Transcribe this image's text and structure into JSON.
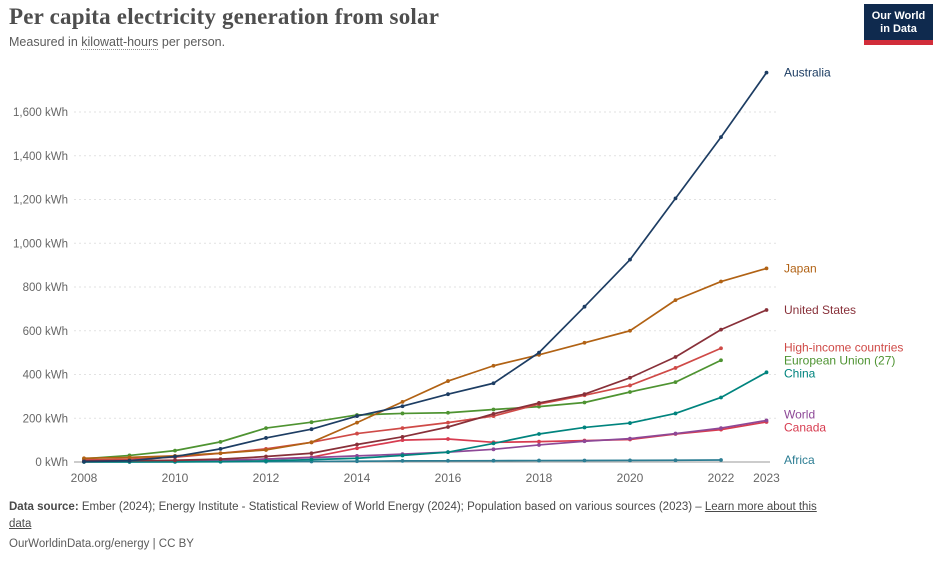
{
  "header": {
    "title": "Per capita electricity generation from solar",
    "subtitle_prefix": "Measured in ",
    "subtitle_link": "kilowatt-hours",
    "subtitle_suffix": " per person.",
    "logo_line1": "Our World",
    "logo_line2": "in Data"
  },
  "chart_data": {
    "type": "line",
    "title": "Per capita electricity generation from solar",
    "unit": "kWh",
    "x": [
      2008,
      2009,
      2010,
      2011,
      2012,
      2013,
      2014,
      2015,
      2016,
      2017,
      2018,
      2019,
      2020,
      2021,
      2022,
      2023
    ],
    "x_ticks": [
      2008,
      2010,
      2012,
      2014,
      2016,
      2018,
      2020,
      2022,
      2023
    ],
    "y_ticks": [
      0,
      200,
      400,
      600,
      800,
      1000,
      1200,
      1400,
      1600
    ],
    "y_tick_suffix": " kWh",
    "ylim": [
      0,
      1820
    ],
    "grid": true,
    "legend_position": "right-edge-labels",
    "series": [
      {
        "name": "Australia",
        "color": "#1d3d63",
        "values": [
          2,
          6,
          25,
          60,
          110,
          150,
          210,
          255,
          310,
          360,
          500,
          710,
          925,
          1205,
          1485,
          1780
        ]
      },
      {
        "name": "Japan",
        "color": "#b16214",
        "values": [
          17,
          21,
          28,
          40,
          55,
          90,
          180,
          275,
          370,
          440,
          490,
          545,
          600,
          740,
          825,
          885
        ]
      },
      {
        "name": "United States",
        "color": "#883039",
        "values": [
          5,
          6,
          8,
          13,
          25,
          40,
          80,
          115,
          160,
          220,
          270,
          310,
          385,
          480,
          605,
          695
        ]
      },
      {
        "name": "High-income countries",
        "color": "#cf4a47",
        "values": [
          9,
          13,
          22,
          40,
          60,
          90,
          130,
          155,
          180,
          210,
          265,
          305,
          350,
          430,
          520,
          null
        ]
      },
      {
        "name": "European Union (27)",
        "color": "#4e9331",
        "values": [
          15,
          30,
          52,
          92,
          155,
          182,
          215,
          222,
          225,
          240,
          253,
          272,
          320,
          365,
          465,
          null
        ]
      },
      {
        "name": "China",
        "color": "#00847e",
        "values": [
          0.3,
          0.5,
          1,
          2,
          5,
          11,
          17,
          30,
          45,
          85,
          128,
          158,
          178,
          222,
          295,
          410
        ]
      },
      {
        "name": "World",
        "color": "#8d4897",
        "values": [
          2,
          3,
          4,
          8,
          13,
          20,
          28,
          36,
          45,
          58,
          78,
          95,
          107,
          130,
          155,
          190
        ]
      },
      {
        "name": "Canada",
        "color": "#d73c50",
        "values": [
          1,
          2,
          4,
          8,
          13,
          22,
          63,
          100,
          105,
          90,
          93,
          98,
          103,
          128,
          148,
          183
        ]
      },
      {
        "name": "Africa",
        "color": "#2c7d93",
        "values": [
          0.3,
          0.4,
          0.5,
          1,
          1.5,
          2.5,
          3.5,
          5,
          5.5,
          6,
          6.5,
          7,
          7.5,
          8,
          9,
          null
        ]
      }
    ]
  },
  "footer": {
    "source_label": "Data source:",
    "source_text": " Ember (2024); Energy Institute - Statistical Review of World Energy (2024); Population based on various sources (2023) – ",
    "learn_more": "Learn more about this data",
    "license": "OurWorldinData.org/energy | CC BY"
  }
}
